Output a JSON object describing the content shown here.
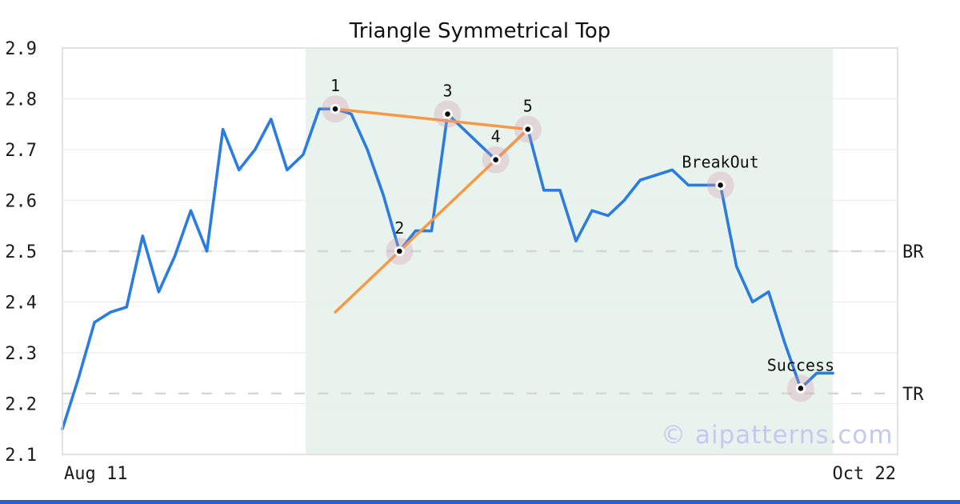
{
  "title": "Triangle Symmetrical Top",
  "watermark": "© aipatterns.com",
  "chart_data": {
    "type": "line",
    "title": "Triangle Symmetrical Top",
    "ylim": [
      2.1,
      2.9
    ],
    "y_ticks": [
      2.1,
      2.2,
      2.3,
      2.4,
      2.5,
      2.6,
      2.7,
      2.8,
      2.9
    ],
    "x_tick_labels": [
      "Aug 11",
      "Oct 22"
    ],
    "grid": true,
    "series": [
      {
        "name": "price",
        "values": [
          2.15,
          2.25,
          2.36,
          2.38,
          2.39,
          2.53,
          2.42,
          2.49,
          2.58,
          2.5,
          2.74,
          2.66,
          2.7,
          2.76,
          2.66,
          2.69,
          2.78,
          2.78,
          2.77,
          2.7,
          2.61,
          2.5,
          2.54,
          2.54,
          2.77,
          2.74,
          2.71,
          2.68,
          2.71,
          2.74,
          2.62,
          2.62,
          2.52,
          2.58,
          2.57,
          2.6,
          2.64,
          2.65,
          2.66,
          2.63,
          2.63,
          2.63,
          2.47,
          2.4,
          2.42,
          2.32,
          2.23,
          2.26,
          2.26
        ]
      }
    ],
    "markers": [
      {
        "label": "1",
        "index": 17,
        "value": 2.78
      },
      {
        "label": "2",
        "index": 21,
        "value": 2.5
      },
      {
        "label": "3",
        "index": 24,
        "value": 2.77
      },
      {
        "label": "4",
        "index": 27,
        "value": 2.68
      },
      {
        "label": "5",
        "index": 29,
        "value": 2.74
      },
      {
        "label": "BreakOut",
        "index": 41,
        "value": 2.63
      },
      {
        "label": "Success",
        "index": 46,
        "value": 2.23
      }
    ],
    "trendlines": [
      {
        "name": "upper",
        "from_index": 17,
        "from_value": 2.78,
        "to_index": 29,
        "to_value": 2.74
      },
      {
        "name": "lower",
        "from_index": 17,
        "from_value": 2.38,
        "to_index": 29,
        "to_value": 2.74
      }
    ],
    "levels": [
      {
        "label": "BR",
        "value": 2.5
      },
      {
        "label": "TR",
        "value": 2.22
      }
    ],
    "pattern_zone": {
      "start_index": 15.15,
      "end_index": 48
    }
  },
  "colors": {
    "line": "#2b7ce0",
    "trendline": "#f79a46",
    "zone": "#e9f3ee",
    "halo": "rgba(207,148,166,0.30)",
    "dot": "#0a0a0a",
    "grid": "#ededed",
    "dashed_level": "#d6d6d6",
    "border": "#d9d9d9",
    "bottom_bar": "#2363c1",
    "watermark": "#c6c9ef",
    "text": "#1a1a1a"
  }
}
